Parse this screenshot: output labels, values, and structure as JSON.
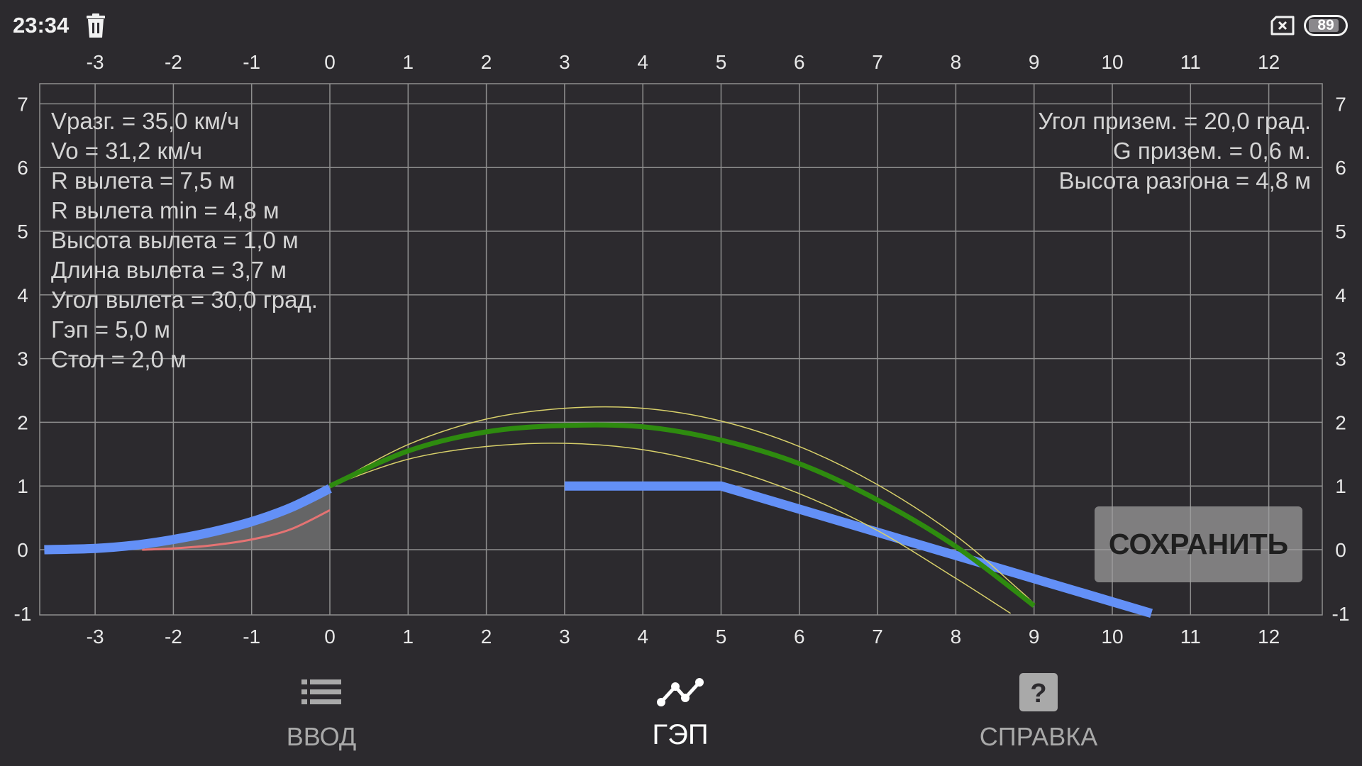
{
  "status_bar": {
    "time": "23:34",
    "notification_icon": "trash-icon",
    "sim_icon": "no-sim-icon",
    "battery_level": "89"
  },
  "chart_data": {
    "type": "line",
    "title": "",
    "xlabel": "",
    "ylabel": "",
    "x_ticks": [
      "-3",
      "-2",
      "-1",
      "0",
      "1",
      "2",
      "3",
      "4",
      "5",
      "6",
      "7",
      "8",
      "9",
      "10",
      "11",
      "12"
    ],
    "y_ticks": [
      "7",
      "6",
      "5",
      "4",
      "3",
      "2",
      "1",
      "0",
      "-1"
    ],
    "xlim": [
      -3.65,
      12.7
    ],
    "ylim": [
      -1.0,
      7.35
    ],
    "grid": true,
    "axes_labels_on": [
      "top",
      "bottom",
      "left",
      "right"
    ],
    "series": [
      {
        "name": "takeoff-ramp",
        "color": "#6390f7",
        "width": 13,
        "points": [
          [
            -3.65,
            0.0
          ],
          [
            -3.0,
            0.02
          ],
          [
            -2.5,
            0.07
          ],
          [
            -2.0,
            0.16
          ],
          [
            -1.5,
            0.28
          ],
          [
            -1.0,
            0.44
          ],
          [
            -0.5,
            0.66
          ],
          [
            0.0,
            0.96
          ]
        ]
      },
      {
        "name": "min-radius-ramp",
        "color": "#e57373",
        "width": 3,
        "points": [
          [
            -2.4,
            0.0
          ],
          [
            -2.0,
            0.02
          ],
          [
            -1.5,
            0.07
          ],
          [
            -1.0,
            0.16
          ],
          [
            -0.5,
            0.32
          ],
          [
            0.0,
            0.62
          ]
        ]
      },
      {
        "name": "table-and-landing",
        "color": "#6390f7",
        "width": 13,
        "points": [
          [
            3.0,
            1.0
          ],
          [
            5.0,
            1.0
          ],
          [
            10.5,
            -1.0
          ]
        ]
      },
      {
        "name": "trajectory",
        "color": "#2e8b0f",
        "width": 7,
        "points": [
          [
            0,
            1.0
          ],
          [
            1,
            1.55
          ],
          [
            2,
            1.85
          ],
          [
            3,
            1.95
          ],
          [
            4,
            1.93
          ],
          [
            5,
            1.72
          ],
          [
            6,
            1.35
          ],
          [
            7,
            0.78
          ],
          [
            8,
            0.05
          ],
          [
            9,
            -0.88
          ]
        ]
      },
      {
        "name": "trajectory-upper",
        "color": "#d8d06a",
        "width": 1.5,
        "points": [
          [
            0,
            1.0
          ],
          [
            1,
            1.65
          ],
          [
            2,
            2.05
          ],
          [
            3,
            2.22
          ],
          [
            4,
            2.22
          ],
          [
            5,
            2.02
          ],
          [
            6,
            1.62
          ],
          [
            7,
            1.02
          ],
          [
            8,
            0.22
          ],
          [
            8.8,
            -0.62
          ],
          [
            9.0,
            -0.85
          ]
        ]
      },
      {
        "name": "trajectory-lower",
        "color": "#d8d06a",
        "width": 1.5,
        "points": [
          [
            0,
            1.0
          ],
          [
            1,
            1.42
          ],
          [
            2,
            1.62
          ],
          [
            3,
            1.67
          ],
          [
            4,
            1.57
          ],
          [
            5,
            1.3
          ],
          [
            6,
            0.88
          ],
          [
            7,
            0.3
          ],
          [
            8,
            -0.45
          ],
          [
            8.7,
            -1.0
          ]
        ]
      }
    ],
    "fill_area": {
      "name": "ramp-body",
      "color": "rgba(150,150,150,0.55)",
      "x_from": -2.4,
      "x_to": 0.0
    }
  },
  "info_left": [
    "Vразг. = 35,0 км/ч",
    "Vo = 31,2 км/ч",
    "R вылета = 7,5 м",
    "R вылета min = 4,8 м",
    "Высота вылета = 1,0 м",
    "Длина вылета = 3,7 м",
    "Угол вылета = 30,0 град.",
    "Гэп = 5,0 м",
    "Стол = 2,0 м"
  ],
  "info_right": [
    "Угол призем. = 20,0 град.",
    "G призем. = 0,6 м.",
    "Высота разгона = 4,8 м"
  ],
  "save_button": {
    "label": "СОХРАНИТЬ"
  },
  "bottom_nav": {
    "items": [
      {
        "label": "ВВОД",
        "icon": "list-icon",
        "active": false
      },
      {
        "label": "ГЭП",
        "icon": "chart-line-icon",
        "active": true
      },
      {
        "label": "СПРАВКА",
        "icon": "help-icon",
        "active": false
      }
    ]
  }
}
